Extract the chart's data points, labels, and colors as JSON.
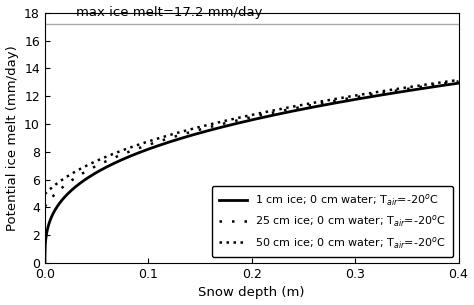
{
  "title_annotation": "max ice melt=17.2 mm/day",
  "xlabel": "Snow depth (m)",
  "ylabel": "Potential ice melt (mm/day)",
  "xlim": [
    0,
    0.4
  ],
  "ylim": [
    0,
    18
  ],
  "yticks": [
    0,
    2,
    4,
    6,
    8,
    10,
    12,
    14,
    16,
    18
  ],
  "xticks": [
    0,
    0.1,
    0.2,
    0.3,
    0.4
  ],
  "max_melt": 17.2,
  "series": [
    {
      "label": "1 cm ice; 0 cm water; T$_{air}$=-20°C",
      "k": 8.0,
      "linestyle": "solid",
      "linewidth": 2.0,
      "color": "#000000"
    },
    {
      "label": "25 cm ice; 0 cm water; T$_{air}$=-20°C",
      "k": 12.0,
      "linestyle": "loosely dotted",
      "linewidth": 1.8,
      "color": "#000000"
    },
    {
      "label": "50 cm ice; 0 cm water; T$_{air}$=-20°C",
      "k": 16.0,
      "linestyle": "densely dotted",
      "linewidth": 1.8,
      "color": "#000000"
    }
  ],
  "hline_y": 17.2,
  "hline_color": "#aaaaaa",
  "hline_linestyle": "solid",
  "hline_linewidth": 1.0,
  "background_color": "#ffffff",
  "legend_loc": "lower right",
  "legend_fontsize": 8.0,
  "axis_fontsize": 9.5,
  "tick_fontsize": 9
}
